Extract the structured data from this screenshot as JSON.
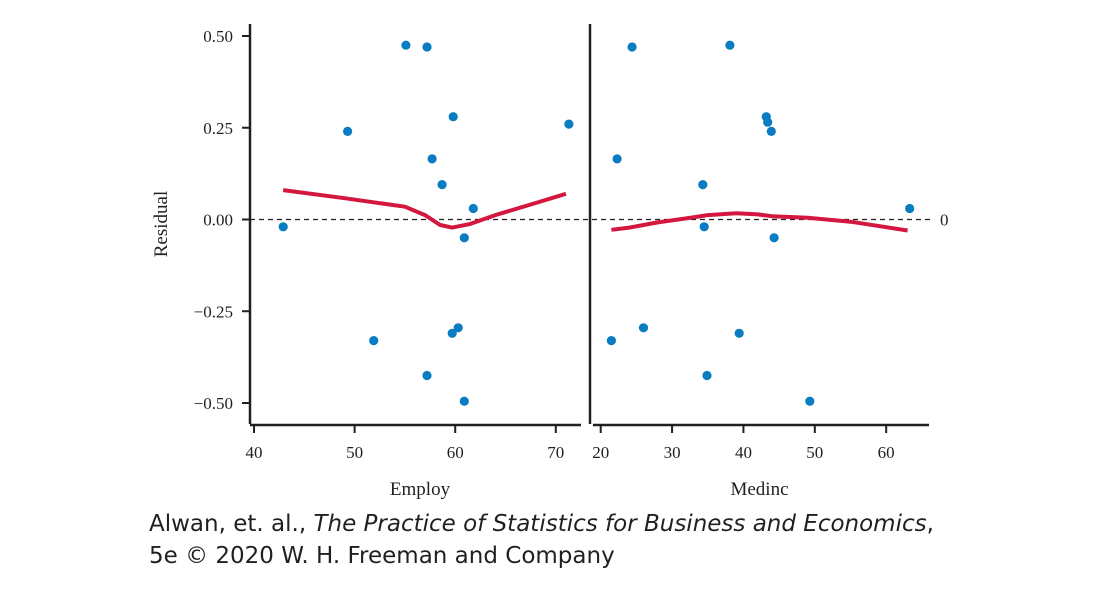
{
  "chart_data": {
    "type": "scatter",
    "ylabel": "Residual",
    "yticks": [
      0.5,
      0.25,
      0.0,
      -0.25,
      -0.5
    ],
    "ytick_labels": [
      "0.50",
      "0.25",
      "0.00",
      "−0.25",
      "−0.50"
    ],
    "ylim": [
      -0.56,
      0.52
    ],
    "reference_line": {
      "y": 0,
      "label": "0",
      "style": "dashed"
    },
    "colors": {
      "points": "#0a7cc1",
      "smooth": "#d4173f",
      "axis": "#231f20"
    },
    "panels": [
      {
        "xlabel": "Employ",
        "xlim": [
          39.6,
          73.4
        ],
        "xticks": [
          40,
          50,
          60,
          70
        ],
        "xtick_labels": [
          "40",
          "50",
          "60",
          "70"
        ],
        "points": [
          {
            "x": 42.9,
            "y": -0.02
          },
          {
            "x": 49.3,
            "y": 0.24
          },
          {
            "x": 51.9,
            "y": -0.33
          },
          {
            "x": 55.1,
            "y": 0.475
          },
          {
            "x": 57.2,
            "y": 0.47
          },
          {
            "x": 57.2,
            "y": -0.425
          },
          {
            "x": 57.7,
            "y": 0.165
          },
          {
            "x": 58.7,
            "y": 0.095
          },
          {
            "x": 59.8,
            "y": 0.28
          },
          {
            "x": 59.7,
            "y": -0.31
          },
          {
            "x": 60.3,
            "y": -0.295
          },
          {
            "x": 60.9,
            "y": -0.05
          },
          {
            "x": 60.9,
            "y": -0.495
          },
          {
            "x": 61.8,
            "y": 0.03
          },
          {
            "x": 71.3,
            "y": 0.26
          }
        ],
        "smooth": [
          {
            "x": 42.9,
            "y": 0.08
          },
          {
            "x": 49.0,
            "y": 0.058
          },
          {
            "x": 55.0,
            "y": 0.035
          },
          {
            "x": 57.0,
            "y": 0.012
          },
          {
            "x": 58.5,
            "y": -0.015
          },
          {
            "x": 59.7,
            "y": -0.022
          },
          {
            "x": 61.5,
            "y": -0.012
          },
          {
            "x": 64.0,
            "y": 0.012
          },
          {
            "x": 68.0,
            "y": 0.045
          },
          {
            "x": 71.0,
            "y": 0.07
          }
        ]
      },
      {
        "xlabel": "Medinc",
        "xlim": [
          18.5,
          66.0
        ],
        "xticks": [
          20,
          30,
          40,
          50,
          60
        ],
        "xtick_labels": [
          "20",
          "30",
          "40",
          "50",
          "60"
        ],
        "points": [
          {
            "x": 21.5,
            "y": -0.33
          },
          {
            "x": 22.3,
            "y": 0.165
          },
          {
            "x": 24.4,
            "y": 0.47
          },
          {
            "x": 26.0,
            "y": -0.295
          },
          {
            "x": 34.3,
            "y": 0.095
          },
          {
            "x": 34.5,
            "y": -0.02
          },
          {
            "x": 34.9,
            "y": -0.425
          },
          {
            "x": 38.1,
            "y": 0.475
          },
          {
            "x": 39.4,
            "y": -0.31
          },
          {
            "x": 43.2,
            "y": 0.28
          },
          {
            "x": 43.4,
            "y": 0.265
          },
          {
            "x": 43.9,
            "y": 0.24
          },
          {
            "x": 44.3,
            "y": -0.05
          },
          {
            "x": 49.3,
            "y": -0.495
          },
          {
            "x": 63.3,
            "y": 0.03
          }
        ],
        "smooth": [
          {
            "x": 21.5,
            "y": -0.028
          },
          {
            "x": 24.0,
            "y": -0.022
          },
          {
            "x": 28.0,
            "y": -0.008
          },
          {
            "x": 32.0,
            "y": 0.003
          },
          {
            "x": 35.0,
            "y": 0.012
          },
          {
            "x": 39.0,
            "y": 0.017
          },
          {
            "x": 42.0,
            "y": 0.014
          },
          {
            "x": 44.0,
            "y": 0.009
          },
          {
            "x": 49.0,
            "y": 0.005
          },
          {
            "x": 55.0,
            "y": -0.006
          },
          {
            "x": 63.0,
            "y": -0.03
          }
        ]
      }
    ]
  },
  "credit": {
    "line1_prefix": "Alwan, et. al., ",
    "line1_title": "The Practice of Statistics for Business and Economics",
    "line1_suffix": ",",
    "line2": "5e © 2020 W. H. Freeman and Company"
  }
}
